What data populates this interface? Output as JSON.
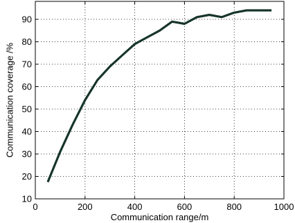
{
  "chart_data": {
    "type": "line",
    "title": "",
    "xlabel": "Communication range/m",
    "ylabel": "Communication coverage /%",
    "xlim": [
      0,
      1000
    ],
    "ylim": [
      10,
      98
    ],
    "xticks": [
      0,
      200,
      400,
      600,
      800,
      1000
    ],
    "yticks": [
      10,
      20,
      30,
      40,
      50,
      60,
      70,
      80,
      90
    ],
    "xtick_labels": [
      "0",
      "200",
      "400",
      "600",
      "800",
      "1000"
    ],
    "ytick_labels": [
      "10",
      "20",
      "30",
      "40",
      "50",
      "60",
      "70",
      "80",
      "90"
    ],
    "grid": true,
    "legend": false,
    "series": [
      {
        "color": "#17352a",
        "x": [
          50,
          100,
          150,
          200,
          250,
          300,
          350,
          400,
          450,
          500,
          550,
          600,
          650,
          700,
          750,
          800,
          850,
          900,
          950
        ],
        "y": [
          17.5,
          31,
          43,
          54,
          63,
          69,
          74,
          79,
          82,
          85,
          89,
          88,
          91,
          92,
          91,
          93,
          94,
          94,
          94
        ]
      }
    ]
  }
}
